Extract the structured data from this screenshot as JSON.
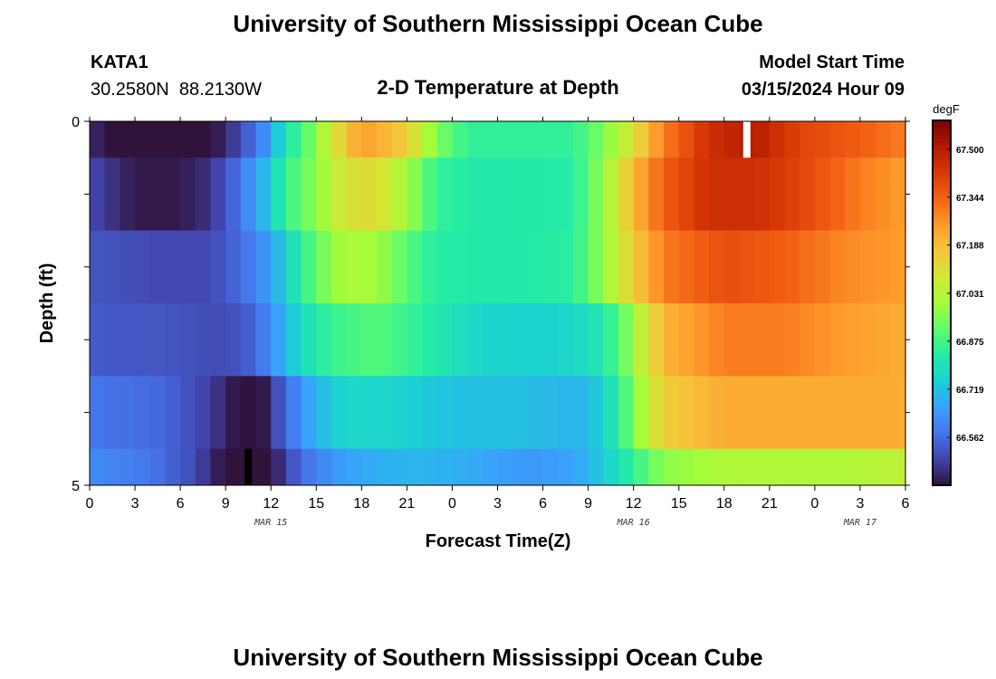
{
  "page_title": "University of Southern Mississippi Ocean Cube",
  "footer_title": "University of Southern Mississippi Ocean Cube",
  "station": {
    "id": "KATA1",
    "coords": "30.2580N  88.2130W"
  },
  "model": {
    "label": "Model Start Time",
    "start": "03/15/2024 Hour 09"
  },
  "chart_data": {
    "type": "heatmap",
    "title": "2-D Temperature at Depth",
    "xlabel": "Forecast Time(Z)",
    "ylabel": "Depth (ft)",
    "x_tick_labels": [
      "0",
      "3",
      "6",
      "9",
      "12",
      "15",
      "18",
      "21",
      "0",
      "3",
      "6",
      "9",
      "12",
      "15",
      "18",
      "21",
      "0",
      "3",
      "6"
    ],
    "date_labels": [
      {
        "label": "MAR 15",
        "hour": 12
      },
      {
        "label": "MAR 16",
        "hour": 36
      },
      {
        "label": "MAR 17",
        "hour": 51
      }
    ],
    "x_range_hours": [
      0,
      54
    ],
    "y_range_ft": [
      0,
      5
    ],
    "y_tick_labels": [
      {
        "label": "0",
        "depth": 0
      },
      {
        "label": "5",
        "depth": 5
      }
    ],
    "depth_bands_ft": [
      [
        0,
        0.5
      ],
      [
        0.5,
        1.5
      ],
      [
        1.5,
        2.5
      ],
      [
        2.5,
        3.5
      ],
      [
        3.5,
        4.5
      ],
      [
        4.5,
        5
      ]
    ],
    "rows": [
      {
        "depth": 0,
        "anchors": [
          [
            0,
            66.45
          ],
          [
            2,
            66.38
          ],
          [
            5,
            66.33
          ],
          [
            8,
            66.4
          ],
          [
            10,
            66.5
          ],
          [
            11.5,
            66.62
          ],
          [
            13,
            66.8
          ],
          [
            14.5,
            66.92
          ],
          [
            16,
            67.08
          ],
          [
            18,
            67.25
          ],
          [
            21,
            67.15
          ],
          [
            23,
            66.95
          ],
          [
            25,
            66.85
          ],
          [
            32,
            66.85
          ],
          [
            34,
            66.95
          ],
          [
            36,
            67.1
          ],
          [
            38,
            67.3
          ],
          [
            41,
            67.45
          ],
          [
            44,
            67.5
          ],
          [
            47,
            67.4
          ],
          [
            51,
            67.35
          ],
          [
            54,
            67.3
          ]
        ]
      },
      {
        "depth": 1,
        "anchors": [
          [
            0,
            66.5
          ],
          [
            3,
            66.42
          ],
          [
            6,
            66.42
          ],
          [
            8,
            66.46
          ],
          [
            10,
            66.58
          ],
          [
            11.5,
            66.7
          ],
          [
            13,
            66.86
          ],
          [
            15,
            66.97
          ],
          [
            17,
            67.1
          ],
          [
            19,
            67.12
          ],
          [
            21,
            67.0
          ],
          [
            23,
            66.85
          ],
          [
            26,
            66.82
          ],
          [
            32,
            66.83
          ],
          [
            34,
            66.98
          ],
          [
            36,
            67.2
          ],
          [
            38,
            67.35
          ],
          [
            41,
            67.45
          ],
          [
            44,
            67.45
          ],
          [
            47,
            67.4
          ],
          [
            51,
            67.3
          ],
          [
            54,
            67.25
          ]
        ]
      },
      {
        "depth": 2,
        "anchors": [
          [
            0,
            66.52
          ],
          [
            4,
            66.5
          ],
          [
            8,
            66.5
          ],
          [
            10,
            66.56
          ],
          [
            12,
            66.66
          ],
          [
            13.5,
            66.8
          ],
          [
            15,
            66.92
          ],
          [
            17,
            67.02
          ],
          [
            19,
            67.0
          ],
          [
            21,
            66.9
          ],
          [
            23,
            66.83
          ],
          [
            28,
            66.82
          ],
          [
            32,
            66.84
          ],
          [
            34,
            66.98
          ],
          [
            36,
            67.15
          ],
          [
            38,
            67.3
          ],
          [
            42,
            67.38
          ],
          [
            46,
            67.35
          ],
          [
            50,
            67.28
          ],
          [
            54,
            67.25
          ]
        ]
      },
      {
        "depth": 3,
        "anchors": [
          [
            0,
            66.53
          ],
          [
            5,
            66.52
          ],
          [
            9,
            66.5
          ],
          [
            11,
            66.55
          ],
          [
            12.5,
            66.66
          ],
          [
            14,
            66.78
          ],
          [
            16,
            66.86
          ],
          [
            19,
            66.9
          ],
          [
            22,
            66.84
          ],
          [
            26,
            66.76
          ],
          [
            30,
            66.75
          ],
          [
            33,
            66.78
          ],
          [
            35,
            66.88
          ],
          [
            36,
            67.0
          ],
          [
            38,
            67.2
          ],
          [
            42,
            67.3
          ],
          [
            46,
            67.3
          ],
          [
            50,
            67.25
          ],
          [
            54,
            67.22
          ]
        ]
      },
      {
        "depth": 4,
        "anchors": [
          [
            0,
            66.58
          ],
          [
            5,
            66.55
          ],
          [
            8,
            66.48
          ],
          [
            10,
            66.4
          ],
          [
            11.5,
            66.42
          ],
          [
            13,
            66.56
          ],
          [
            15,
            66.7
          ],
          [
            17,
            66.77
          ],
          [
            20,
            66.76
          ],
          [
            24,
            66.72
          ],
          [
            28,
            66.72
          ],
          [
            31,
            66.7
          ],
          [
            33,
            66.7
          ],
          [
            35,
            66.83
          ],
          [
            36,
            66.95
          ],
          [
            38,
            67.15
          ],
          [
            42,
            67.22
          ],
          [
            46,
            67.22
          ],
          [
            50,
            67.22
          ],
          [
            54,
            67.22
          ]
        ]
      },
      {
        "depth": 5,
        "anchors": [
          [
            0,
            66.62
          ],
          [
            4,
            66.58
          ],
          [
            7,
            66.5
          ],
          [
            9,
            66.4
          ],
          [
            10.5,
            66.33
          ],
          [
            12,
            66.4
          ],
          [
            13,
            66.5
          ],
          [
            15,
            66.6
          ],
          [
            17,
            66.66
          ],
          [
            21,
            66.7
          ],
          [
            25,
            66.68
          ],
          [
            29,
            66.64
          ],
          [
            32,
            66.66
          ],
          [
            34,
            66.74
          ],
          [
            36,
            66.85
          ],
          [
            38,
            66.97
          ],
          [
            42,
            67.02
          ],
          [
            46,
            67.02
          ],
          [
            50,
            67.02
          ],
          [
            54,
            67.05
          ]
        ]
      }
    ],
    "markers": [
      {
        "hour": 43.5,
        "depth_band": 0,
        "color": "#ffffff"
      },
      {
        "hour": 10.5,
        "depth_band": 5,
        "color": "#000000"
      }
    ],
    "colorbar": {
      "unit": "degF",
      "min": 66.406,
      "max": 67.594,
      "tick_values": [
        67.5,
        67.344,
        67.188,
        67.031,
        66.875,
        66.719,
        66.562
      ],
      "tick_labels": [
        "67.500",
        "67.344",
        "67.188",
        "67.031",
        "66.875",
        "66.719",
        "66.562"
      ],
      "palette": [
        "#30123b",
        "#4145ab",
        "#4675ed",
        "#39a2fc",
        "#1bcfd4",
        "#24eca6",
        "#61fc6c",
        "#a4fc3b",
        "#d1e834",
        "#f3c63a",
        "#fe9b2d",
        "#f36315",
        "#d93806",
        "#b11901",
        "#7a0402"
      ]
    }
  }
}
